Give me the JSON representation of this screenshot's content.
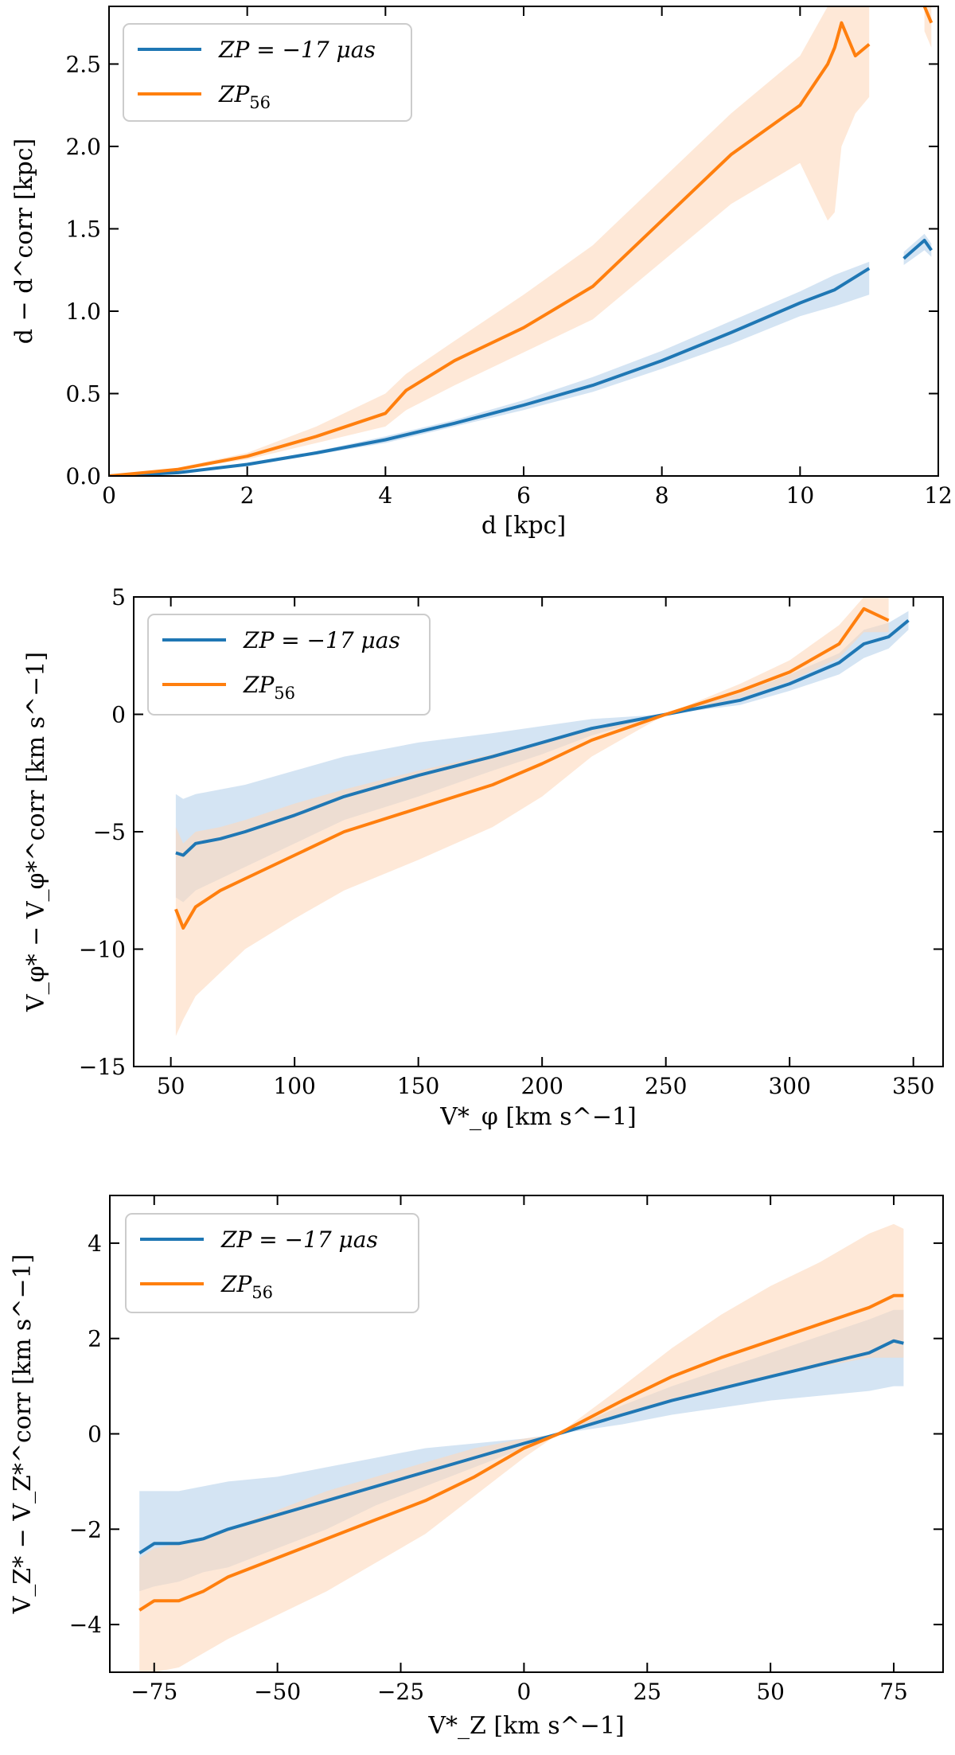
{
  "figure_title": "",
  "colors": {
    "blue": "#1f77b4",
    "orange": "#ff7f0e",
    "blue_band": "#c6dbef",
    "orange_band": "#fdd9bd"
  },
  "chart_data": [
    {
      "type": "line",
      "title": "",
      "xlabel": "d [kpc]",
      "ylabel": "d − d^corr [kpc]",
      "xlim": [
        0,
        12
      ],
      "ylim": [
        0.0,
        2.85
      ],
      "xticks": [
        0,
        2,
        4,
        6,
        8,
        10,
        12
      ],
      "yticks": [
        0.0,
        0.5,
        1.0,
        1.5,
        2.0,
        2.5
      ],
      "xtick_labels": [
        "0",
        "2",
        "4",
        "6",
        "8",
        "10",
        "12"
      ],
      "ytick_labels": [
        "0.0",
        "0.5",
        "1.0",
        "1.5",
        "2.0",
        "2.5"
      ],
      "legend_position": "top-left",
      "series": [
        {
          "name": "ZP = −17 μas",
          "legend": {
            "main": "ZP = −17 μas"
          },
          "color": "#1f77b4",
          "x": [
            0,
            1,
            2,
            3,
            4,
            5,
            6,
            7,
            8,
            9,
            10,
            10.5,
            11,
            null,
            11.5,
            11.8,
            11.9
          ],
          "y": [
            0.0,
            0.02,
            0.07,
            0.14,
            0.22,
            0.32,
            0.43,
            0.55,
            0.7,
            0.87,
            1.05,
            1.13,
            1.26,
            null,
            1.32,
            1.43,
            1.37
          ],
          "lower": [
            0.0,
            0.02,
            0.06,
            0.13,
            0.2,
            0.3,
            0.4,
            0.51,
            0.65,
            0.8,
            0.97,
            1.03,
            1.1,
            null,
            1.28,
            1.37,
            1.33
          ],
          "upper": [
            0.0,
            0.02,
            0.08,
            0.15,
            0.24,
            0.34,
            0.46,
            0.6,
            0.76,
            0.94,
            1.12,
            1.22,
            1.3,
            null,
            1.36,
            1.47,
            1.41
          ]
        },
        {
          "name": "ZP56",
          "legend": {
            "main": "ZP",
            "sub": "56"
          },
          "color": "#ff7f0e",
          "x": [
            0,
            1,
            2,
            3,
            4,
            4.3,
            5,
            6,
            7,
            8,
            9,
            10,
            10.4,
            10.5,
            10.6,
            10.8,
            11,
            null,
            11.8,
            11.9
          ],
          "y": [
            0.0,
            0.04,
            0.12,
            0.24,
            0.38,
            0.52,
            0.7,
            0.9,
            1.15,
            1.55,
            1.95,
            2.25,
            2.5,
            2.6,
            2.75,
            2.55,
            2.62,
            null,
            2.85,
            2.75
          ],
          "lower": [
            0.0,
            0.04,
            0.1,
            0.2,
            0.3,
            0.4,
            0.55,
            0.75,
            0.95,
            1.3,
            1.65,
            1.9,
            1.55,
            1.6,
            2.0,
            2.2,
            2.3,
            null,
            2.7,
            2.6
          ],
          "upper": [
            0.0,
            0.05,
            0.14,
            0.3,
            0.5,
            0.62,
            0.82,
            1.1,
            1.4,
            1.8,
            2.2,
            2.55,
            2.85,
            2.85,
            2.85,
            2.85,
            2.85,
            null,
            2.85,
            2.85
          ]
        }
      ]
    },
    {
      "type": "line",
      "title": "",
      "xlabel": "V*_φ [km s^−1]",
      "ylabel": "V_φ* − V_φ*^corr [km s^−1]",
      "xlim": [
        35,
        362
      ],
      "ylim": [
        -15,
        5
      ],
      "xticks": [
        50,
        100,
        150,
        200,
        250,
        300,
        350
      ],
      "yticks": [
        -15,
        -10,
        -5,
        0,
        5
      ],
      "xtick_labels": [
        "50",
        "100",
        "150",
        "200",
        "250",
        "300",
        "350"
      ],
      "ytick_labels": [
        "−15",
        "−10",
        "−5",
        "0",
        "5"
      ],
      "legend_position": "top-left",
      "series": [
        {
          "name": "ZP = −17 μas",
          "legend": {
            "main": "ZP = −17 μas"
          },
          "color": "#1f77b4",
          "x": [
            52,
            55,
            60,
            70,
            80,
            100,
            120,
            150,
            180,
            200,
            220,
            250,
            280,
            300,
            320,
            330,
            340,
            348
          ],
          "y": [
            -5.9,
            -6.0,
            -5.5,
            -5.3,
            -5.0,
            -4.3,
            -3.5,
            -2.6,
            -1.8,
            -1.2,
            -0.6,
            0.0,
            0.6,
            1.3,
            2.2,
            3.0,
            3.3,
            4.0
          ],
          "lower": [
            -7.8,
            -8.0,
            -7.5,
            -7.0,
            -6.5,
            -5.5,
            -4.5,
            -3.5,
            -2.4,
            -1.7,
            -0.9,
            0.0,
            0.4,
            1.0,
            1.7,
            2.4,
            2.8,
            3.6
          ],
          "upper": [
            -3.4,
            -3.6,
            -3.4,
            -3.2,
            -3.0,
            -2.4,
            -1.8,
            -1.2,
            -0.8,
            -0.5,
            -0.2,
            0.0,
            0.9,
            1.7,
            2.6,
            3.6,
            3.9,
            4.4
          ]
        },
        {
          "name": "ZP56",
          "legend": {
            "main": "ZP",
            "sub": "56"
          },
          "color": "#ff7f0e",
          "x": [
            52,
            55,
            60,
            70,
            80,
            100,
            120,
            150,
            180,
            200,
            220,
            250,
            280,
            300,
            320,
            330,
            340
          ],
          "y": [
            -8.3,
            -9.1,
            -8.2,
            -7.5,
            -7.0,
            -6.0,
            -5.0,
            -4.0,
            -3.0,
            -2.1,
            -1.1,
            0.0,
            1.0,
            1.8,
            3.0,
            4.5,
            4.0
          ],
          "lower": [
            -13.7,
            -13.0,
            -12.0,
            -11.0,
            -10.0,
            -8.7,
            -7.5,
            -6.2,
            -4.8,
            -3.5,
            -1.8,
            0.0,
            0.7,
            1.4,
            2.4,
            3.5,
            3.5
          ],
          "upper": [
            -4.8,
            -5.5,
            -5.0,
            -4.8,
            -4.5,
            -3.8,
            -3.2,
            -2.4,
            -1.7,
            -1.2,
            -0.6,
            0.0,
            1.3,
            2.3,
            3.8,
            5.0,
            5.0
          ]
        }
      ]
    },
    {
      "type": "line",
      "title": "",
      "xlabel": "V*_Z [km s^−1]",
      "ylabel": "V_Z* − V_Z*^corr [km s^−1]",
      "xlim": [
        -84,
        85
      ],
      "ylim": [
        -5,
        5
      ],
      "xticks": [
        -75,
        -50,
        -25,
        0,
        25,
        50,
        75
      ],
      "yticks": [
        -4,
        -2,
        0,
        2,
        4
      ],
      "xtick_labels": [
        "−75",
        "−50",
        "−25",
        "0",
        "25",
        "50",
        "75"
      ],
      "ytick_labels": [
        "−4",
        "−2",
        "0",
        "2",
        "4"
      ],
      "legend_position": "top-left",
      "series": [
        {
          "name": "ZP = −17 μas",
          "legend": {
            "main": "ZP = −17 μas"
          },
          "color": "#1f77b4",
          "x": [
            -78,
            -75,
            -70,
            -65,
            -60,
            -50,
            -40,
            -30,
            -20,
            -10,
            0,
            7,
            20,
            30,
            40,
            50,
            60,
            70,
            75,
            77
          ],
          "y": [
            -2.5,
            -2.3,
            -2.3,
            -2.2,
            -2.0,
            -1.7,
            -1.4,
            -1.1,
            -0.8,
            -0.5,
            -0.2,
            0.0,
            0.4,
            0.7,
            0.95,
            1.2,
            1.45,
            1.7,
            1.95,
            1.9
          ],
          "lower": [
            -3.3,
            -3.2,
            -3.1,
            -2.9,
            -2.8,
            -2.4,
            -2.0,
            -1.5,
            -1.1,
            -0.7,
            -0.3,
            0.0,
            0.2,
            0.4,
            0.55,
            0.7,
            0.8,
            0.9,
            1.0,
            1.0
          ],
          "upper": [
            -1.2,
            -1.2,
            -1.2,
            -1.1,
            -1.0,
            -0.9,
            -0.7,
            -0.5,
            -0.3,
            -0.2,
            -0.1,
            0.0,
            0.6,
            1.0,
            1.35,
            1.7,
            2.05,
            2.4,
            2.6,
            2.6
          ]
        },
        {
          "name": "ZP56",
          "legend": {
            "main": "ZP",
            "sub": "56"
          },
          "color": "#ff7f0e",
          "x": [
            -78,
            -75,
            -70,
            -65,
            -60,
            -50,
            -40,
            -30,
            -20,
            -10,
            0,
            7,
            20,
            30,
            40,
            50,
            60,
            70,
            75,
            77
          ],
          "y": [
            -3.7,
            -3.5,
            -3.5,
            -3.3,
            -3.0,
            -2.6,
            -2.2,
            -1.8,
            -1.4,
            -0.9,
            -0.3,
            0.0,
            0.7,
            1.2,
            1.6,
            1.95,
            2.3,
            2.65,
            2.9,
            2.9
          ],
          "lower": [
            -5.0,
            -5.0,
            -4.9,
            -4.6,
            -4.3,
            -3.8,
            -3.3,
            -2.7,
            -2.1,
            -1.3,
            -0.5,
            0.0,
            0.4,
            0.7,
            0.95,
            1.2,
            1.4,
            1.6,
            1.6,
            1.6
          ],
          "upper": [
            -2.6,
            -2.4,
            -2.3,
            -2.2,
            -2.0,
            -1.6,
            -1.2,
            -0.9,
            -0.6,
            -0.3,
            -0.1,
            0.0,
            1.0,
            1.8,
            2.5,
            3.1,
            3.6,
            4.2,
            4.4,
            4.3
          ]
        }
      ]
    }
  ]
}
